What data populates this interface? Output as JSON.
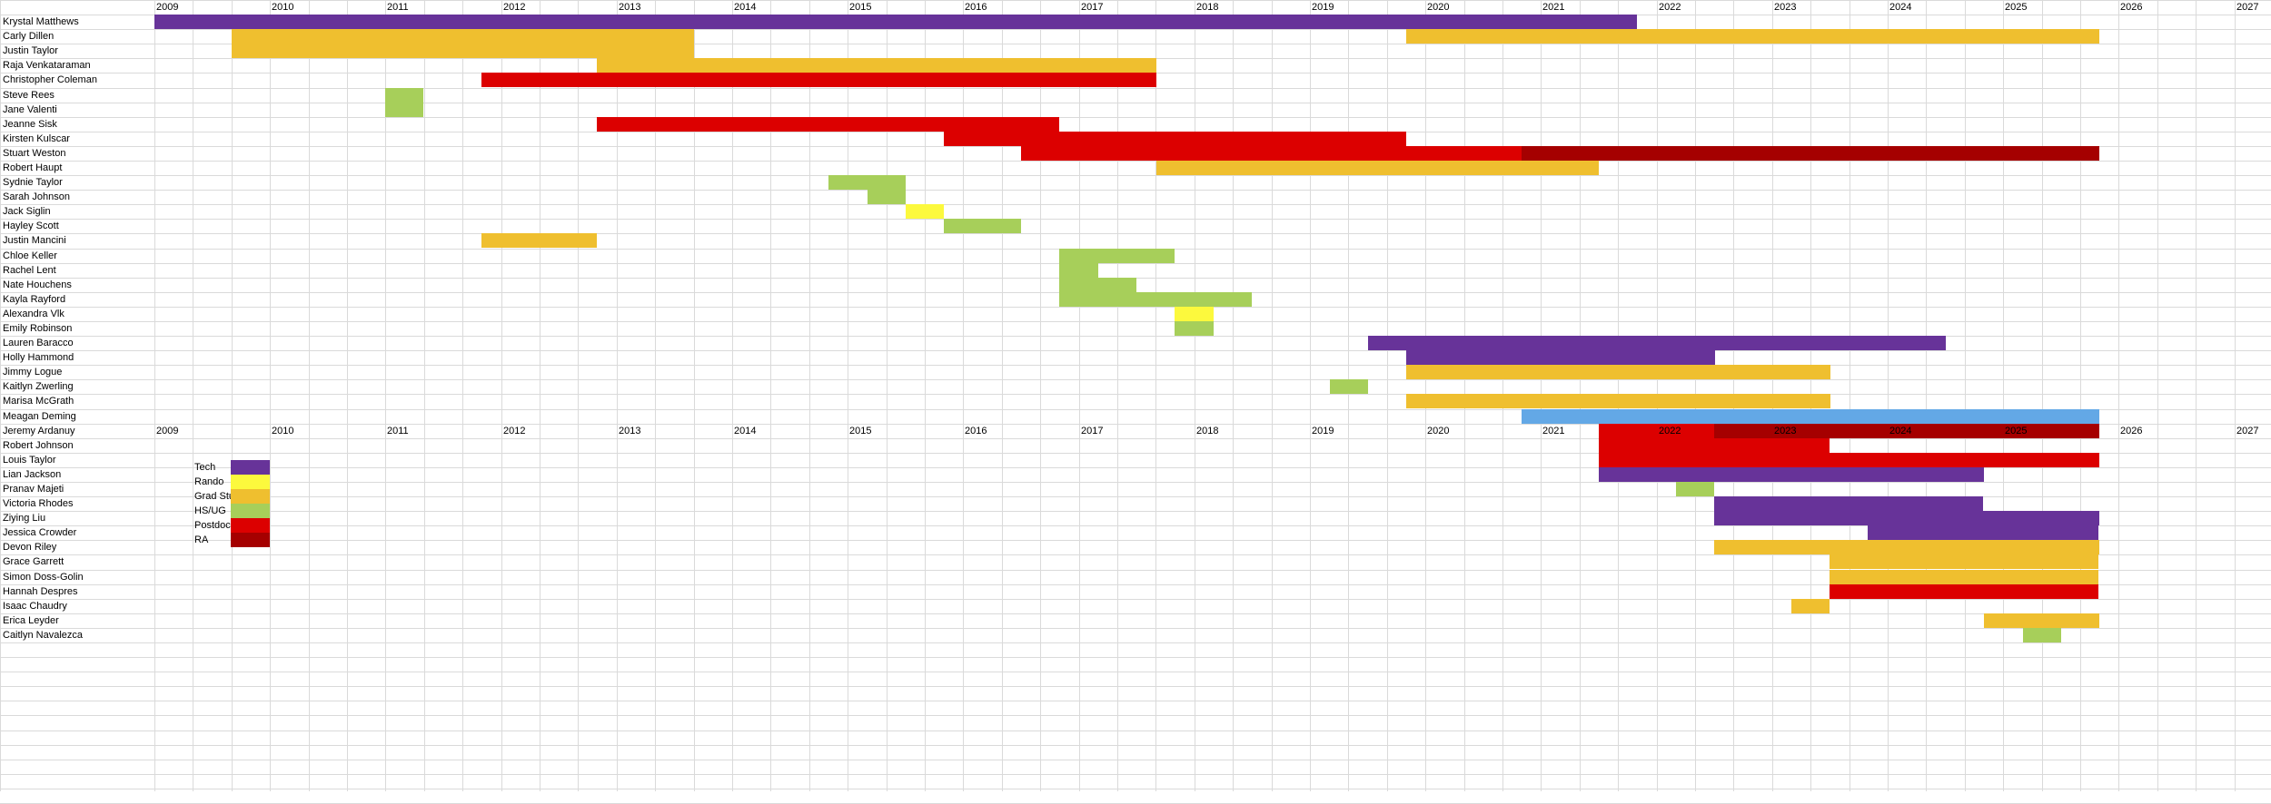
{
  "years": [
    "2009",
    "2010",
    "2011",
    "2012",
    "2013",
    "2014",
    "2015",
    "2016",
    "2017",
    "2018",
    "2019",
    "2020",
    "2021",
    "2022",
    "2023",
    "2024",
    "2025",
    "2026",
    "2027"
  ],
  "roles": {
    "tech": {
      "label": "Tech",
      "color": "#673399"
    },
    "rando": {
      "label": "Rando",
      "color": "#fcf93d"
    },
    "grad": {
      "label": "Grad Student",
      "color": "#efbf2f"
    },
    "hsug": {
      "label": "HS/UG",
      "color": "#a7cf5a"
    },
    "postdoc": {
      "label": "Postdoc",
      "color": "#dc0000"
    },
    "ra": {
      "label": "RA",
      "color": "#a50000"
    },
    "other": {
      "label": "",
      "color": "#63a8e6"
    }
  },
  "legend": [
    "tech",
    "rando",
    "grad",
    "hsug",
    "postdoc",
    "ra"
  ],
  "people": [
    {
      "name": "Krystal Matthews",
      "bars": [
        {
          "start": 2009.0,
          "end": 2021.83,
          "role": "tech"
        }
      ]
    },
    {
      "name": "Carly Dillen",
      "bars": [
        {
          "start": 2009.67,
          "end": 2013.67,
          "role": "grad"
        },
        {
          "start": 2019.83,
          "end": 2025.83,
          "role": "grad"
        }
      ]
    },
    {
      "name": "Justin Taylor",
      "bars": [
        {
          "start": 2009.67,
          "end": 2013.67,
          "role": "grad"
        }
      ]
    },
    {
      "name": "Raja Venkataraman",
      "bars": [
        {
          "start": 2012.83,
          "end": 2017.67,
          "role": "grad"
        }
      ]
    },
    {
      "name": "Christopher Coleman",
      "bars": [
        {
          "start": 2011.83,
          "end": 2017.67,
          "role": "postdoc"
        }
      ]
    },
    {
      "name": "Steve Rees",
      "bars": [
        {
          "start": 2011.0,
          "end": 2011.33,
          "role": "hsug"
        }
      ]
    },
    {
      "name": "Jane Valenti",
      "bars": [
        {
          "start": 2011.0,
          "end": 2011.33,
          "role": "hsug"
        }
      ]
    },
    {
      "name": "Jeanne Sisk",
      "bars": [
        {
          "start": 2012.83,
          "end": 2016.83,
          "role": "postdoc"
        }
      ]
    },
    {
      "name": "Kirsten Kulscar",
      "bars": [
        {
          "start": 2015.83,
          "end": 2019.83,
          "role": "postdoc"
        }
      ]
    },
    {
      "name": "Stuart Weston",
      "bars": [
        {
          "start": 2016.5,
          "end": 2020.83,
          "role": "postdoc"
        },
        {
          "start": 2020.83,
          "end": 2025.83,
          "role": "ra"
        }
      ]
    },
    {
      "name": "Robert Haupt",
      "bars": [
        {
          "start": 2017.67,
          "end": 2021.5,
          "role": "grad"
        }
      ]
    },
    {
      "name": "Sydnie Taylor",
      "bars": [
        {
          "start": 2014.83,
          "end": 2015.5,
          "role": "hsug"
        }
      ]
    },
    {
      "name": "Sarah Johnson",
      "bars": [
        {
          "start": 2015.17,
          "end": 2015.5,
          "role": "hsug"
        }
      ]
    },
    {
      "name": "Jack Siglin",
      "bars": [
        {
          "start": 2015.5,
          "end": 2015.83,
          "role": "rando"
        }
      ]
    },
    {
      "name": "Hayley Scott",
      "bars": [
        {
          "start": 2015.83,
          "end": 2016.5,
          "role": "hsug"
        }
      ]
    },
    {
      "name": "Justin Mancini",
      "bars": [
        {
          "start": 2011.83,
          "end": 2012.83,
          "role": "grad"
        }
      ]
    },
    {
      "name": "Chloe Keller",
      "bars": [
        {
          "start": 2016.83,
          "end": 2017.83,
          "role": "hsug"
        }
      ]
    },
    {
      "name": "Rachel Lent",
      "bars": [
        {
          "start": 2016.83,
          "end": 2017.17,
          "role": "hsug"
        }
      ]
    },
    {
      "name": "Nate Houchens",
      "bars": [
        {
          "start": 2016.83,
          "end": 2017.5,
          "role": "hsug"
        }
      ]
    },
    {
      "name": "Kayla Rayford",
      "bars": [
        {
          "start": 2016.83,
          "end": 2018.5,
          "role": "hsug"
        }
      ]
    },
    {
      "name": "Alexandra Vlk",
      "bars": [
        {
          "start": 2017.83,
          "end": 2018.17,
          "role": "rando"
        }
      ]
    },
    {
      "name": "Emily Robinson",
      "bars": [
        {
          "start": 2017.83,
          "end": 2018.17,
          "role": "hsug"
        }
      ]
    },
    {
      "name": "Lauren Baracco",
      "bars": [
        {
          "start": 2019.5,
          "end": 2024.5,
          "role": "tech"
        }
      ]
    },
    {
      "name": "Holly Hammond",
      "bars": [
        {
          "start": 2019.83,
          "end": 2022.5,
          "role": "tech"
        }
      ]
    },
    {
      "name": "Jimmy Logue",
      "bars": [
        {
          "start": 2019.83,
          "end": 2023.5,
          "role": "grad"
        }
      ]
    },
    {
      "name": "Kaitlyn Zwerling",
      "bars": [
        {
          "start": 2019.17,
          "end": 2019.5,
          "role": "hsug"
        }
      ]
    },
    {
      "name": "Marisa McGrath",
      "bars": [
        {
          "start": 2019.83,
          "end": 2023.5,
          "role": "grad"
        }
      ]
    },
    {
      "name": "Meagan Deming",
      "bars": [
        {
          "start": 2020.83,
          "end": 2025.83,
          "role": "other"
        }
      ]
    },
    {
      "name": "Jeremy Ardanuy",
      "bars": [
        {
          "start": 2021.5,
          "end": 2022.5,
          "role": "postdoc"
        },
        {
          "start": 2022.5,
          "end": 2025.83,
          "role": "ra"
        }
      ]
    },
    {
      "name": "Robert  Johnson",
      "bars": [
        {
          "start": 2021.5,
          "end": 2023.5,
          "role": "postdoc"
        }
      ]
    },
    {
      "name": "Louis Taylor",
      "bars": [
        {
          "start": 2021.5,
          "end": 2025.83,
          "role": "postdoc"
        }
      ]
    },
    {
      "name": "Lian Jackson",
      "bars": [
        {
          "start": 2021.5,
          "end": 2024.83,
          "role": "tech"
        }
      ]
    },
    {
      "name": "Pranav Majeti",
      "bars": [
        {
          "start": 2022.17,
          "end": 2022.5,
          "role": "hsug"
        }
      ]
    },
    {
      "name": "Victoria Rhodes",
      "bars": [
        {
          "start": 2022.5,
          "end": 2024.83,
          "role": "tech"
        }
      ]
    },
    {
      "name": "Ziying Liu",
      "bars": [
        {
          "start": 2022.5,
          "end": 2025.83,
          "role": "tech"
        }
      ]
    },
    {
      "name": "Jessica Crowder",
      "bars": [
        {
          "start": 2023.83,
          "end": 2025.83,
          "role": "tech"
        }
      ]
    },
    {
      "name": "Devon Riley",
      "bars": [
        {
          "start": 2022.5,
          "end": 2025.83,
          "role": "grad"
        }
      ]
    },
    {
      "name": "Grace Garrett",
      "bars": [
        {
          "start": 2023.5,
          "end": 2025.83,
          "role": "grad"
        }
      ]
    },
    {
      "name": "Simon Doss-Golin",
      "bars": [
        {
          "start": 2023.5,
          "end": 2025.83,
          "role": "grad"
        }
      ]
    },
    {
      "name": "Hannah Despres",
      "bars": [
        {
          "start": 2023.5,
          "end": 2025.83,
          "role": "postdoc"
        }
      ]
    },
    {
      "name": "Isaac Chaudry",
      "bars": [
        {
          "start": 2023.17,
          "end": 2023.5,
          "role": "grad"
        }
      ]
    },
    {
      "name": "Erica Leyder",
      "bars": [
        {
          "start": 2024.83,
          "end": 2025.83,
          "role": "grad"
        }
      ]
    },
    {
      "name": "Caitlyn Navalezca",
      "bars": [
        {
          "start": 2025.17,
          "end": 2025.5,
          "role": "hsug"
        }
      ]
    }
  ]
}
